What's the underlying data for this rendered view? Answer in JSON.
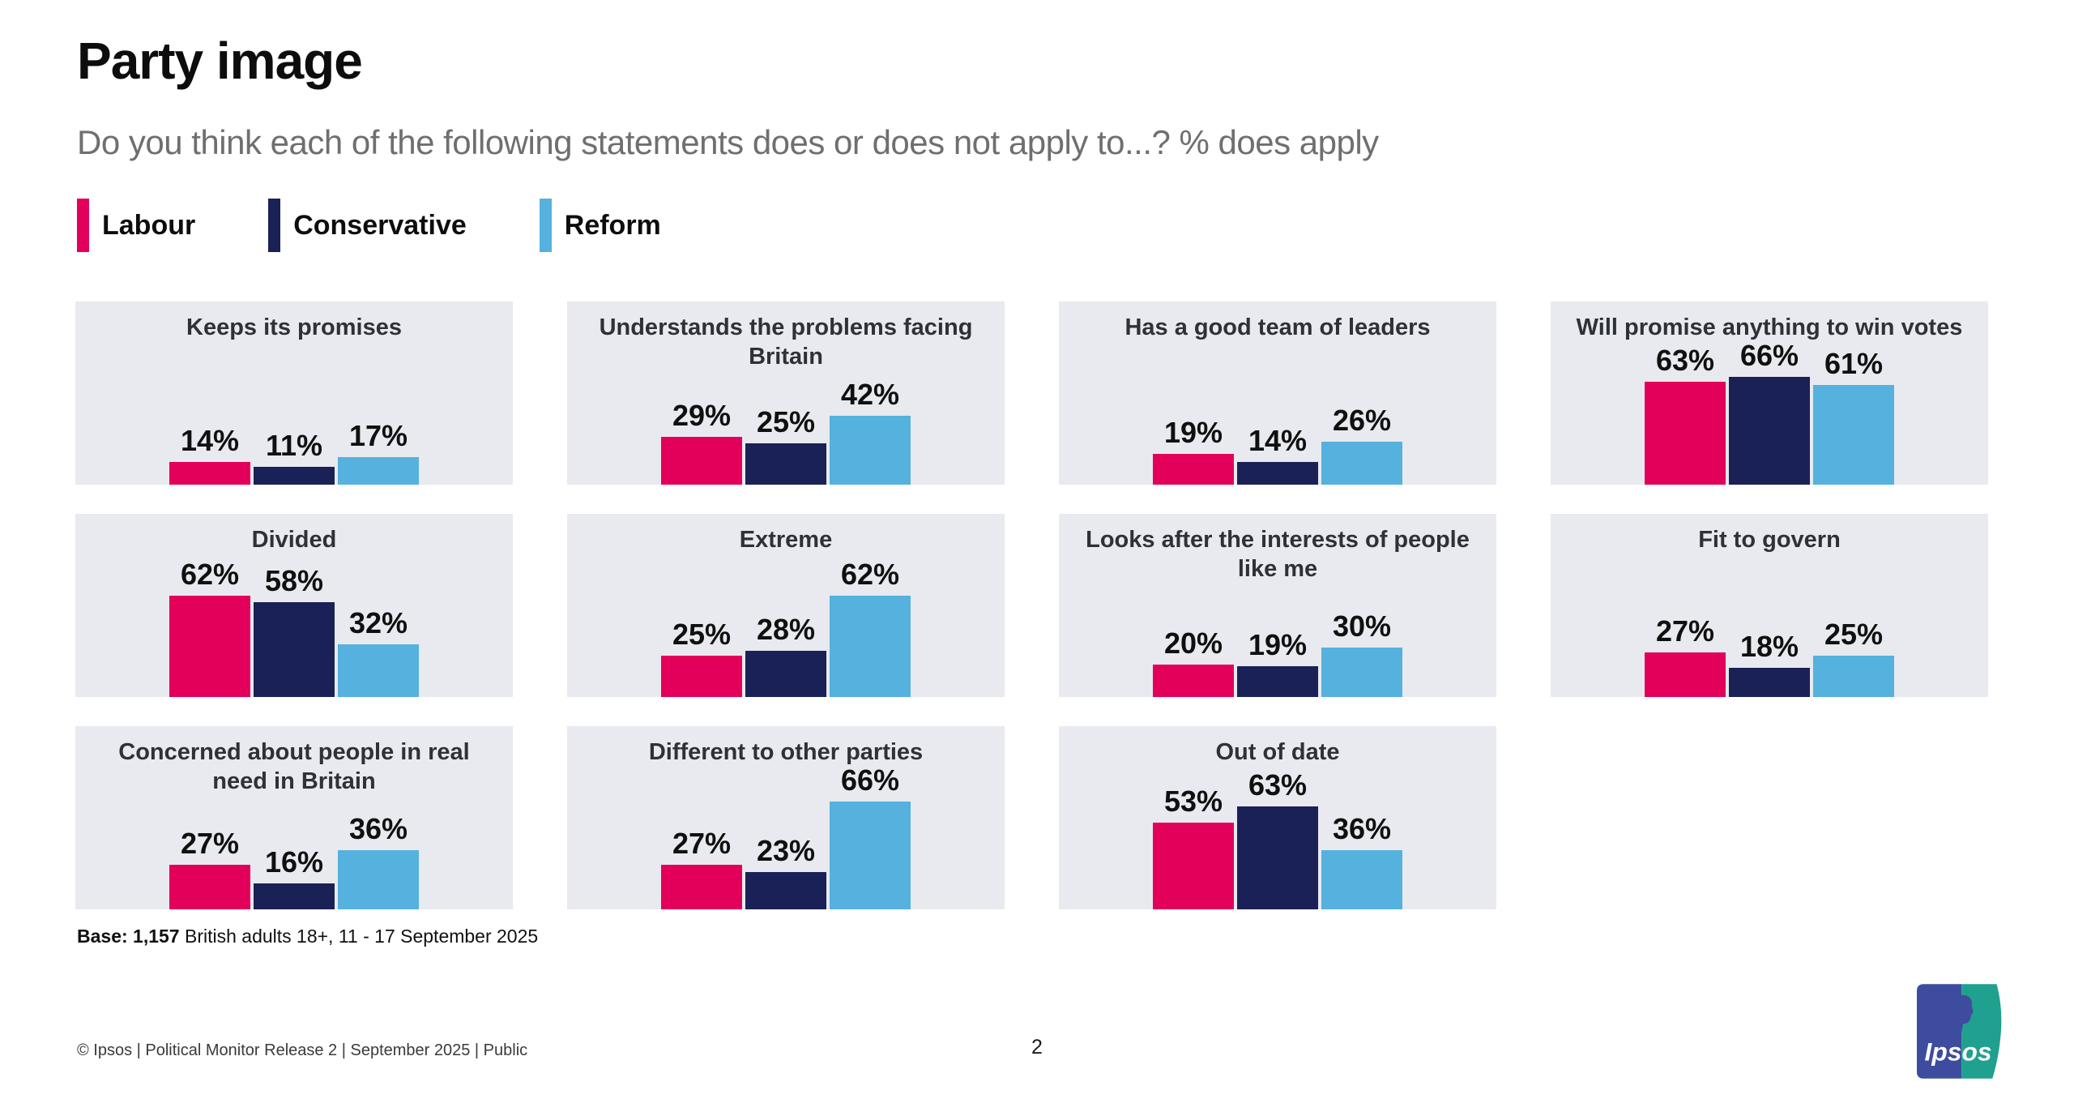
{
  "header": {
    "title": "Party image",
    "subtitle": "Do you think each of the following statements does or does not apply to...? % does apply"
  },
  "chart_data": {
    "type": "bar",
    "unit": "%",
    "layout": "small-multiples, 4 columns x 3 rows, 11 panels",
    "legend_position": "top-left",
    "grid": false,
    "ylim": [
      0,
      70
    ],
    "series_names": [
      "Labour",
      "Conservative",
      "Reform"
    ],
    "series_colors": [
      "#e3005a",
      "#1a2156",
      "#55b1dd"
    ],
    "panels": [
      {
        "title": "Keeps its promises",
        "values": [
          14,
          11,
          17
        ]
      },
      {
        "title": "Understands the problems facing Britain",
        "values": [
          29,
          25,
          42
        ]
      },
      {
        "title": "Has a good team of leaders",
        "values": [
          19,
          14,
          26
        ]
      },
      {
        "title": "Will promise anything to win votes",
        "values": [
          63,
          66,
          61
        ]
      },
      {
        "title": "Divided",
        "values": [
          62,
          58,
          32
        ]
      },
      {
        "title": "Extreme",
        "values": [
          25,
          28,
          62
        ]
      },
      {
        "title": "Looks after the interests of people like me",
        "values": [
          20,
          19,
          30
        ]
      },
      {
        "title": "Fit to govern",
        "values": [
          27,
          18,
          25
        ]
      },
      {
        "title": "Concerned about people in real need in Britain",
        "values": [
          27,
          16,
          36
        ]
      },
      {
        "title": "Different to other parties",
        "values": [
          27,
          23,
          66
        ]
      },
      {
        "title": "Out of date",
        "values": [
          53,
          63,
          36
        ]
      }
    ]
  },
  "notes": {
    "base_bold": "Base: 1,157",
    "base_rest": " British adults 18+, 11 - 17 September 2025"
  },
  "footer": {
    "left": "© Ipsos | Political Monitor Release 2 | September 2025 | Public",
    "page_number": "2",
    "logo_text": "Ipsos"
  },
  "colors": {
    "panel_bg": "#e8eaef",
    "labour_pink": "#e3005a",
    "conservative_navy": "#1a2156",
    "reform_blue": "#55b1dd",
    "logo_blue": "#3d4c9e",
    "logo_teal": "#20a08e"
  }
}
